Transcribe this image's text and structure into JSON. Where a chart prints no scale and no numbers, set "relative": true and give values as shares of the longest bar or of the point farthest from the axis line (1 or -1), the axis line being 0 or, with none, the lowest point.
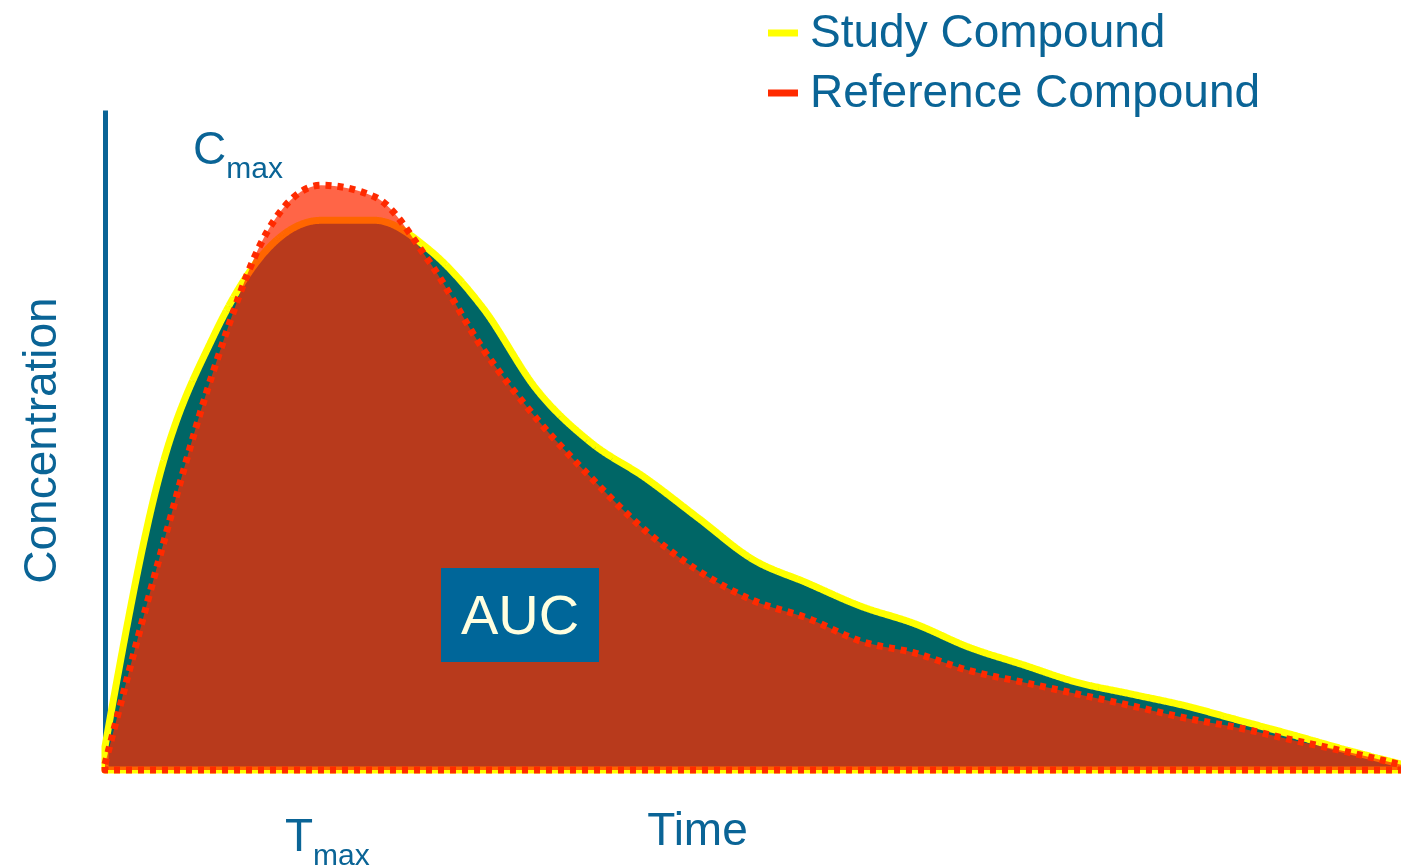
{
  "chart_data": {
    "type": "area",
    "relative": true,
    "xlabel": "Time",
    "ylabel": "Concentration",
    "legend": "top right",
    "tick_labels": false,
    "categories": [
      null,
      null,
      null,
      null,
      null,
      null,
      null,
      null,
      null,
      null,
      null,
      null,
      null,
      null,
      null,
      null,
      null,
      null,
      null,
      null,
      null,
      null,
      null,
      null,
      null
    ],
    "annotations": [
      "C$_{max}$",
      "T$_{max}$",
      "AUC"
    ],
    "series": [
      {
        "name": "Study Compound",
        "color": "#ffff00",
        "line_style": "solid",
        "values": [
          0.04,
          0.5,
          0.74,
          0.89,
          0.94,
          0.94,
          0.89,
          0.79,
          0.65,
          0.56,
          0.5,
          0.43,
          0.36,
          0.32,
          0.28,
          0.25,
          0.21,
          0.18,
          0.15,
          0.13,
          0.11,
          0.085,
          0.06,
          0.034,
          0.01
        ]
      },
      {
        "name": "Reference Compound",
        "color": "#ff2a00",
        "line_style": "dotted",
        "values": [
          0.01,
          0.36,
          0.68,
          0.92,
          1,
          0.98,
          0.87,
          0.72,
          0.6,
          0.5,
          0.41,
          0.34,
          0.29,
          0.26,
          0.22,
          0.2,
          0.17,
          0.15,
          0.13,
          0.11,
          0.089,
          0.072,
          0.051,
          0.031,
          0.009
        ]
      }
    ]
  }
}
